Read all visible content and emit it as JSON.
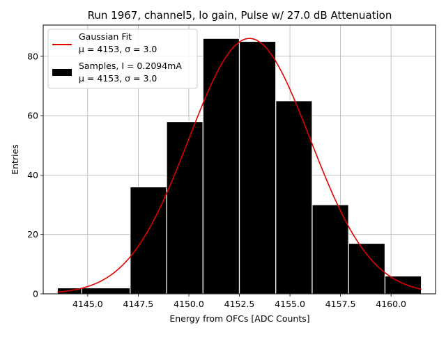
{
  "chart_data": {
    "type": "bar",
    "title": "Run 1967, channel5, lo gain, Pulse w/ 27.0 dB Attenuation",
    "xlabel": "Energy from OFCs [ADC Counts]",
    "ylabel": "Entries",
    "xlim": [
      4142.8,
      4162.2
    ],
    "ylim": [
      0,
      90.5
    ],
    "xticks": [
      4145.0,
      4147.5,
      4150.0,
      4152.5,
      4155.0,
      4157.5,
      4160.0
    ],
    "xtick_labels": [
      "4145.0",
      "4147.5",
      "4150.0",
      "4152.5",
      "4155.0",
      "4157.5",
      "4160.0"
    ],
    "yticks": [
      0,
      20,
      40,
      60,
      80
    ],
    "ytick_labels": [
      "0",
      "20",
      "40",
      "60",
      "80"
    ],
    "grid": true,
    "legend_position": "top-left",
    "bins": [
      {
        "start": 4143.5,
        "end": 4144.7,
        "value": 2
      },
      {
        "start": 4144.7,
        "end": 4147.1,
        "value": 2
      },
      {
        "start": 4147.1,
        "end": 4148.9,
        "value": 36
      },
      {
        "start": 4148.9,
        "end": 4150.7,
        "value": 58
      },
      {
        "start": 4150.7,
        "end": 4152.5,
        "value": 86
      },
      {
        "start": 4152.5,
        "end": 4154.3,
        "value": 85
      },
      {
        "start": 4154.3,
        "end": 4156.1,
        "value": 65
      },
      {
        "start": 4156.1,
        "end": 4157.9,
        "value": 30
      },
      {
        "start": 4157.9,
        "end": 4159.7,
        "value": 17
      },
      {
        "start": 4159.7,
        "end": 4161.5,
        "value": 6
      }
    ],
    "fit": {
      "mu": 4153.0,
      "sigma": 3.0,
      "amplitude": 86,
      "x_range": [
        4143.5,
        4161.5
      ]
    },
    "series": [
      {
        "name": "Gaussian Fit",
        "stats": "μ = 4153, σ = 3.0",
        "color": "#e00000",
        "kind": "line"
      },
      {
        "name": "Samples, I = 0.2094mA",
        "stats": "μ = 4153, σ = 3.0",
        "color": "#000000",
        "kind": "bar"
      }
    ]
  }
}
